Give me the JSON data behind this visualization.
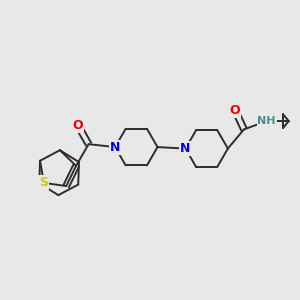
{
  "background_color": "#e8e8e8",
  "bond_color": "#2d2d2d",
  "atom_colors": {
    "N": "#0000ee",
    "O": "#ee0000",
    "S": "#cccc00",
    "H": "#4a9090",
    "C": "#2d2d2d"
  },
  "figsize": [
    3.0,
    3.0
  ],
  "dpi": 100
}
